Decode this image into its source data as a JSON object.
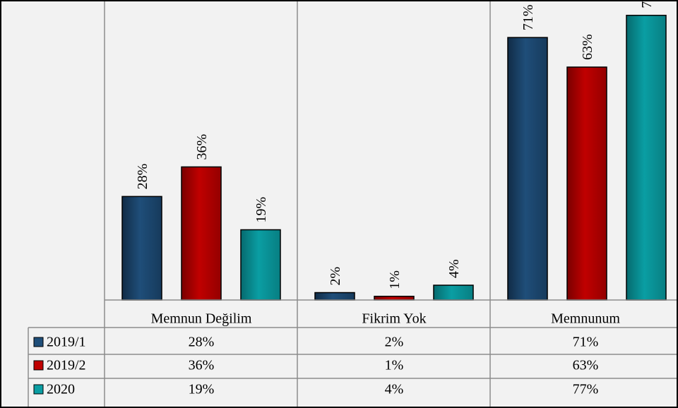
{
  "chart_data": {
    "type": "bar",
    "title": "",
    "xlabel": "",
    "ylabel": "",
    "ylim": [
      0,
      80
    ],
    "grid": false,
    "legend": "data-table-left",
    "value_suffix": "%",
    "categories": [
      "Memnun Değilim",
      "Fikrim Yok",
      "Memnunum"
    ],
    "series": [
      {
        "name": "2019/1",
        "color": "#1f4e79",
        "values": [
          28,
          2,
          71
        ]
      },
      {
        "name": "2019/2",
        "color": "#c00000",
        "values": [
          36,
          1,
          63
        ]
      },
      {
        "name": "2020",
        "color": "#0a9ea3",
        "values": [
          19,
          4,
          77
        ]
      }
    ],
    "table_rows": [
      {
        "legend": "2019/1",
        "cells": [
          "28%",
          "2%",
          "71%"
        ]
      },
      {
        "legend": "2019/2",
        "cells": [
          "36%",
          "1%",
          "63%"
        ]
      },
      {
        "legend": "2020",
        "cells": [
          "19%",
          "4%",
          "77%"
        ]
      }
    ]
  }
}
